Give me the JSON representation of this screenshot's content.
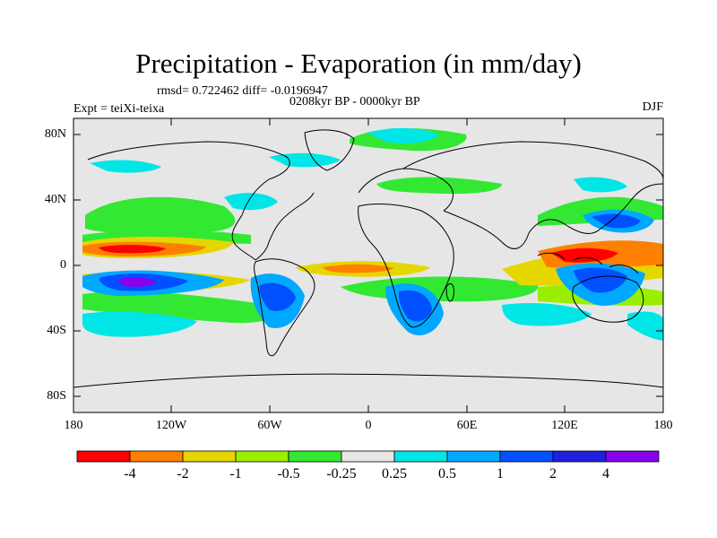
{
  "header": {
    "title": "Precipitation - Evaporation (in mm/day)",
    "stats": "rmsd= 0.722462 diff= -0.0196947",
    "period": "0208kyr BP - 0000kyr BP",
    "experiment": "Expt = teiXi-teixa",
    "season": "DJF"
  },
  "axes": {
    "y_labels": [
      "80N",
      "40N",
      "0",
      "40S",
      "80S"
    ],
    "x_labels": [
      "180",
      "120W",
      "60W",
      "0",
      "60E",
      "120E",
      "180"
    ]
  },
  "legend": {
    "labels": [
      "-4",
      "-2",
      "-1",
      "-0.5",
      "-0.25",
      "0.25",
      "0.5",
      "1",
      "2",
      "4"
    ],
    "colors": [
      "#ff0000",
      "#ff8000",
      "#e6d600",
      "#9aee00",
      "#33e833",
      "#e6e6e6",
      "#00e6e6",
      "#00a8ff",
      "#0050ff",
      "#2020e0",
      "#8800ee"
    ]
  },
  "map": {
    "background": "#e6e6e6"
  }
}
